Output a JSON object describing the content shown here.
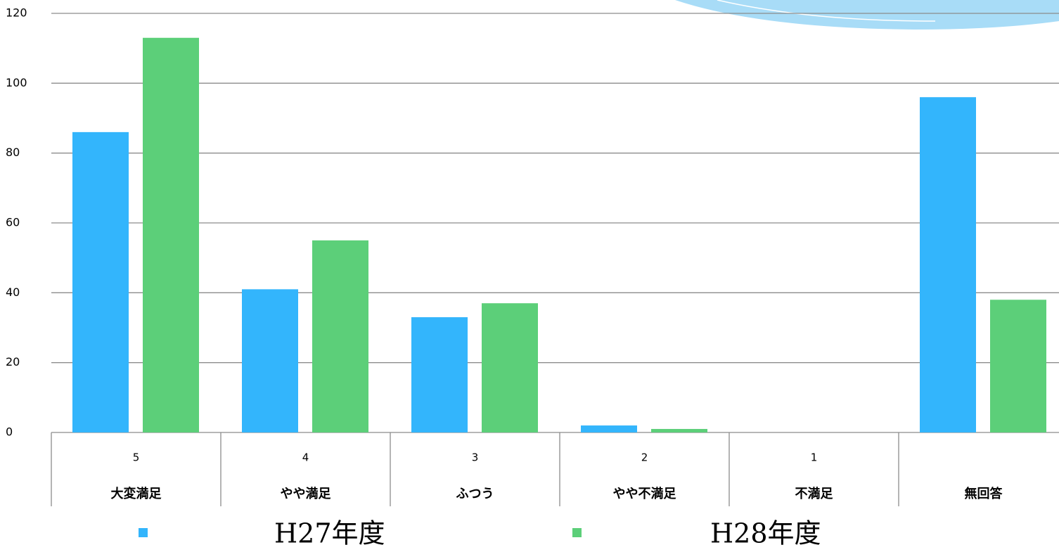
{
  "chart_data": {
    "type": "bar",
    "categories": [
      "大変満足",
      "やや満足",
      "ふつう",
      "やや不満足",
      "不満足",
      "無回答"
    ],
    "category_numbers": [
      "5",
      "4",
      "3",
      "2",
      "1",
      null
    ],
    "series": [
      {
        "name": "H27年度",
        "color": "#33b5fc",
        "values": [
          86,
          41,
          33,
          2,
          0,
          96
        ]
      },
      {
        "name": "H28年度",
        "color": "#5ccf79",
        "values": [
          113,
          55,
          37,
          1,
          0,
          38
        ]
      }
    ],
    "ylim": [
      0,
      120
    ],
    "yticks": [
      0,
      20,
      40,
      60,
      80,
      100,
      120
    ],
    "grid": true
  }
}
